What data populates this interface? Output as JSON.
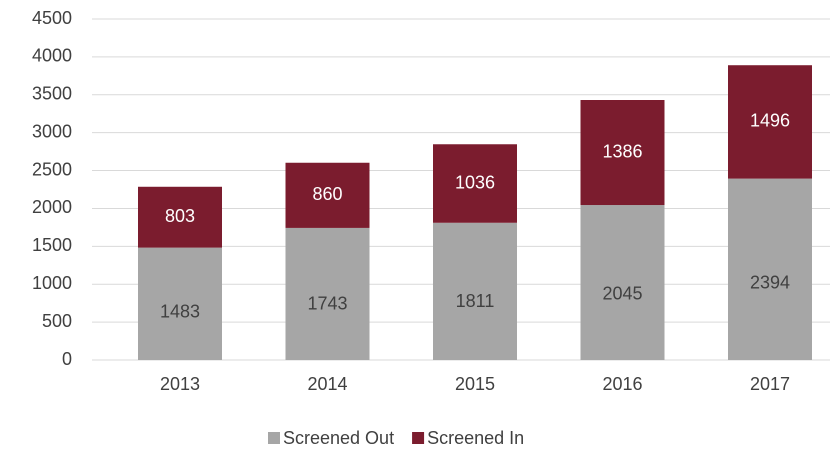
{
  "chart_data": {
    "type": "stacked_bar",
    "categories": [
      "2013",
      "2014",
      "2015",
      "2016",
      "2017"
    ],
    "series": [
      {
        "name": "Screened Out",
        "color": "#a6a6a6",
        "values": [
          1483,
          1743,
          1811,
          2045,
          2394
        ]
      },
      {
        "name": "Screened In",
        "color": "#7b1c2e",
        "values": [
          803,
          860,
          1036,
          1386,
          1496
        ]
      }
    ],
    "ylim": [
      0,
      4500
    ],
    "yticks": [
      0,
      500,
      1000,
      1500,
      2000,
      2500,
      3000,
      3500,
      4000,
      4500
    ],
    "grid": true,
    "legend": "bottom"
  }
}
